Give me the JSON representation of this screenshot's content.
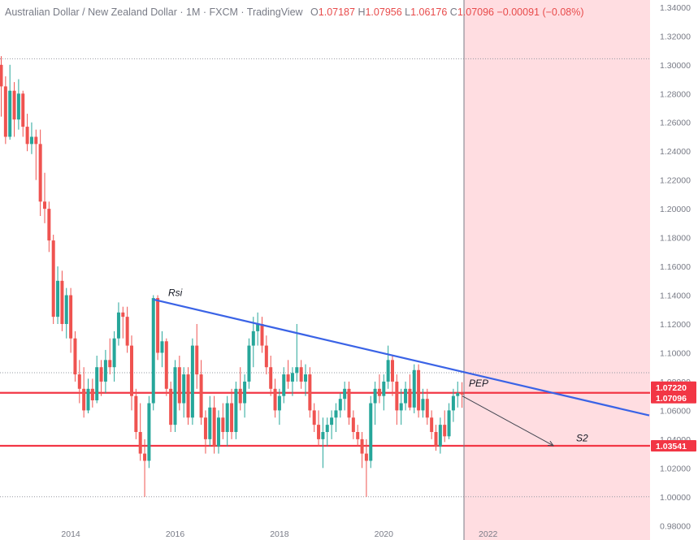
{
  "header": {
    "title": "Australian Dollar / New Zealand Dollar · 1M · FXCM · TradingView",
    "o_label": "O",
    "o_value": "1.07187",
    "h_label": "H",
    "h_value": "1.07956",
    "l_label": "L",
    "l_value": "1.06176",
    "c_label": "C",
    "c_value": "1.07096",
    "change": "−0.00091 (−0.08%)"
  },
  "chart_data": {
    "type": "candlestick",
    "symbol": "AUDNZD",
    "interval": "1M",
    "ylim": [
      0.97,
      1.345
    ],
    "x_ticks": [
      "2014",
      "2016",
      "2018",
      "2020",
      "2022"
    ],
    "y_ticks": [
      "1.34000",
      "1.32000",
      "1.30000",
      "1.28000",
      "1.26000",
      "1.24000",
      "1.22000",
      "1.20000",
      "1.18000",
      "1.16000",
      "1.14000",
      "1.12000",
      "1.10000",
      "1.08000",
      "1.06000",
      "1.04000",
      "1.02000",
      "1.00000",
      "0.98000"
    ],
    "price_labels": [
      {
        "value": "1.07220",
        "color": "#f23645"
      },
      {
        "value": "1.07096",
        "color": "#f23645"
      },
      {
        "value": "1.03541",
        "color": "#f23645"
      }
    ],
    "horizontal_lines": [
      {
        "price": 1.0722,
        "color": "#f23645",
        "style": "solid"
      },
      {
        "price": 1.0354,
        "color": "#f23645",
        "style": "solid"
      },
      {
        "price": 1.3042,
        "color": "#9598a1",
        "style": "dotted"
      },
      {
        "price": 1.0862,
        "color": "#9598a1",
        "style": "dotted"
      },
      {
        "price": 1.0,
        "color": "#9598a1",
        "style": "dotted"
      }
    ],
    "annotations": [
      {
        "text": "Rsi"
      },
      {
        "text": "PEP"
      },
      {
        "text": "S2"
      }
    ],
    "colors": {
      "up": "#26a69a",
      "down": "#ef5350",
      "trendline": "#3a63e6",
      "zone": "#ffdde1"
    },
    "candles": [
      [
        1.3,
        1.306,
        1.264,
        1.285
      ],
      [
        1.285,
        1.292,
        1.245,
        1.25
      ],
      [
        1.25,
        1.3,
        1.248,
        1.282
      ],
      [
        1.282,
        1.288,
        1.25,
        1.262
      ],
      [
        1.262,
        1.29,
        1.255,
        1.28
      ],
      [
        1.28,
        1.282,
        1.25,
        1.257
      ],
      [
        1.257,
        1.266,
        1.24,
        1.245
      ],
      [
        1.245,
        1.26,
        1.238,
        1.25
      ],
      [
        1.25,
        1.255,
        1.22,
        1.245
      ],
      [
        1.245,
        1.255,
        1.195,
        1.205
      ],
      [
        1.205,
        1.225,
        1.19,
        1.2
      ],
      [
        1.2,
        1.205,
        1.17,
        1.178
      ],
      [
        1.178,
        1.182,
        1.12,
        1.125
      ],
      [
        1.125,
        1.16,
        1.12,
        1.15
      ],
      [
        1.15,
        1.157,
        1.115,
        1.12
      ],
      [
        1.12,
        1.145,
        1.11,
        1.14
      ],
      [
        1.14,
        1.145,
        1.1,
        1.11
      ],
      [
        1.11,
        1.115,
        1.08,
        1.085
      ],
      [
        1.085,
        1.095,
        1.065,
        1.075
      ],
      [
        1.075,
        1.09,
        1.055,
        1.06
      ],
      [
        1.06,
        1.082,
        1.058,
        1.075
      ],
      [
        1.075,
        1.082,
        1.062,
        1.067
      ],
      [
        1.067,
        1.098,
        1.065,
        1.09
      ],
      [
        1.09,
        1.095,
        1.07,
        1.08
      ],
      [
        1.08,
        1.102,
        1.072,
        1.095
      ],
      [
        1.095,
        1.11,
        1.085,
        1.09
      ],
      [
        1.09,
        1.115,
        1.08,
        1.11
      ],
      [
        1.11,
        1.135,
        1.105,
        1.128
      ],
      [
        1.128,
        1.132,
        1.11,
        1.125
      ],
      [
        1.125,
        1.132,
        1.1,
        1.105
      ],
      [
        1.105,
        1.112,
        1.06,
        1.07
      ],
      [
        1.07,
        1.075,
        1.04,
        1.045
      ],
      [
        1.045,
        1.065,
        1.025,
        1.03
      ],
      [
        1.03,
        1.04,
        1.0,
        1.025
      ],
      [
        1.025,
        1.07,
        1.02,
        1.065
      ],
      [
        1.065,
        1.14,
        1.06,
        1.138
      ],
      [
        1.138,
        1.14,
        1.095,
        1.1
      ],
      [
        1.1,
        1.115,
        1.09,
        1.108
      ],
      [
        1.108,
        1.11,
        1.07,
        1.075
      ],
      [
        1.075,
        1.08,
        1.045,
        1.05
      ],
      [
        1.05,
        1.095,
        1.045,
        1.09
      ],
      [
        1.09,
        1.098,
        1.06,
        1.065
      ],
      [
        1.065,
        1.09,
        1.055,
        1.085
      ],
      [
        1.085,
        1.09,
        1.05,
        1.055
      ],
      [
        1.055,
        1.11,
        1.05,
        1.105
      ],
      [
        1.105,
        1.12,
        1.075,
        1.085
      ],
      [
        1.085,
        1.095,
        1.05,
        1.055
      ],
      [
        1.055,
        1.06,
        1.03,
        1.04
      ],
      [
        1.04,
        1.07,
        1.035,
        1.062
      ],
      [
        1.062,
        1.07,
        1.03,
        1.035
      ],
      [
        1.035,
        1.06,
        1.03,
        1.055
      ],
      [
        1.055,
        1.065,
        1.04,
        1.045
      ],
      [
        1.045,
        1.07,
        1.035,
        1.065
      ],
      [
        1.065,
        1.075,
        1.04,
        1.045
      ],
      [
        1.045,
        1.08,
        1.04,
        1.075
      ],
      [
        1.075,
        1.09,
        1.06,
        1.065
      ],
      [
        1.065,
        1.085,
        1.055,
        1.08
      ],
      [
        1.08,
        1.11,
        1.075,
        1.105
      ],
      [
        1.105,
        1.125,
        1.09,
        1.115
      ],
      [
        1.115,
        1.128,
        1.105,
        1.12
      ],
      [
        1.12,
        1.125,
        1.1,
        1.105
      ],
      [
        1.105,
        1.112,
        1.085,
        1.09
      ],
      [
        1.09,
        1.098,
        1.07,
        1.075
      ],
      [
        1.075,
        1.082,
        1.055,
        1.06
      ],
      [
        1.06,
        1.075,
        1.05,
        1.07
      ],
      [
        1.07,
        1.09,
        1.065,
        1.085
      ],
      [
        1.085,
        1.095,
        1.075,
        1.08
      ],
      [
        1.08,
        1.09,
        1.07,
        1.086
      ],
      [
        1.086,
        1.12,
        1.08,
        1.09
      ],
      [
        1.09,
        1.095,
        1.075,
        1.08
      ],
      [
        1.08,
        1.092,
        1.07,
        1.085
      ],
      [
        1.085,
        1.09,
        1.055,
        1.06
      ],
      [
        1.06,
        1.065,
        1.045,
        1.05
      ],
      [
        1.05,
        1.06,
        1.035,
        1.04
      ],
      [
        1.04,
        1.055,
        1.02,
        1.045
      ],
      [
        1.045,
        1.055,
        1.035,
        1.05
      ],
      [
        1.05,
        1.06,
        1.04,
        1.055
      ],
      [
        1.055,
        1.065,
        1.045,
        1.06
      ],
      [
        1.06,
        1.072,
        1.055,
        1.068
      ],
      [
        1.068,
        1.08,
        1.06,
        1.075
      ],
      [
        1.075,
        1.08,
        1.05,
        1.055
      ],
      [
        1.055,
        1.06,
        1.04,
        1.045
      ],
      [
        1.045,
        1.05,
        1.035,
        1.04
      ],
      [
        1.04,
        1.045,
        1.02,
        1.03
      ],
      [
        1.03,
        1.04,
        1.0,
        1.025
      ],
      [
        1.025,
        1.07,
        1.02,
        1.065
      ],
      [
        1.065,
        1.08,
        1.05,
        1.075
      ],
      [
        1.075,
        1.085,
        1.065,
        1.07
      ],
      [
        1.07,
        1.085,
        1.06,
        1.08
      ],
      [
        1.08,
        1.105,
        1.075,
        1.095
      ],
      [
        1.095,
        1.098,
        1.07,
        1.08
      ],
      [
        1.08,
        1.085,
        1.05,
        1.06
      ],
      [
        1.06,
        1.075,
        1.05,
        1.065
      ],
      [
        1.065,
        1.08,
        1.06,
        1.075
      ],
      [
        1.075,
        1.085,
        1.06,
        1.062
      ],
      [
        1.062,
        1.092,
        1.058,
        1.088
      ],
      [
        1.088,
        1.092,
        1.055,
        1.06
      ],
      [
        1.06,
        1.075,
        1.055,
        1.068
      ],
      [
        1.068,
        1.075,
        1.05,
        1.055
      ],
      [
        1.055,
        1.06,
        1.04,
        1.045
      ],
      [
        1.045,
        1.05,
        1.032,
        1.035
      ],
      [
        1.035,
        1.055,
        1.03,
        1.05
      ],
      [
        1.05,
        1.06,
        1.038,
        1.042
      ],
      [
        1.042,
        1.065,
        1.04,
        1.06
      ],
      [
        1.06,
        1.075,
        1.052,
        1.07
      ],
      [
        1.07,
        1.08,
        1.062,
        1.072
      ],
      [
        1.0719,
        1.0796,
        1.0618,
        1.071
      ]
    ]
  }
}
